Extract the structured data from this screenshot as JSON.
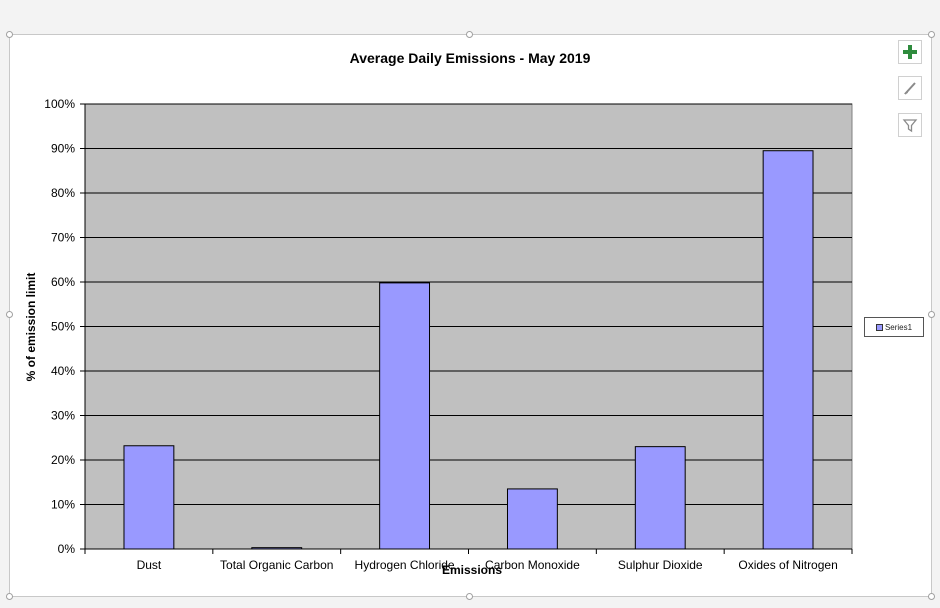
{
  "chart_data": {
    "type": "bar",
    "title": "Average Daily Emissions - May 2019",
    "xlabel": "Emissions",
    "ylabel": "% of emission limit",
    "categories": [
      "Dust",
      "Total Organic Carbon",
      "Hydrogen Chloride",
      "Carbon Monoxide",
      "Sulphur Dioxide",
      "Oxides of Nitrogen"
    ],
    "series": [
      {
        "name": "Series1",
        "values": [
          23.2,
          0.3,
          59.8,
          13.5,
          23.0,
          89.5
        ],
        "color": "#9999ff"
      }
    ],
    "ylim": [
      0,
      100
    ],
    "yticks": [
      "0%",
      "10%",
      "20%",
      "30%",
      "40%",
      "50%",
      "60%",
      "70%",
      "80%",
      "90%",
      "100%"
    ],
    "grid": true,
    "plot_background": "#c0c0c0",
    "legend": "right"
  },
  "toolbar": {
    "add_icon": "plus-icon",
    "style_icon": "brush-icon",
    "filter_icon": "filter-icon"
  }
}
